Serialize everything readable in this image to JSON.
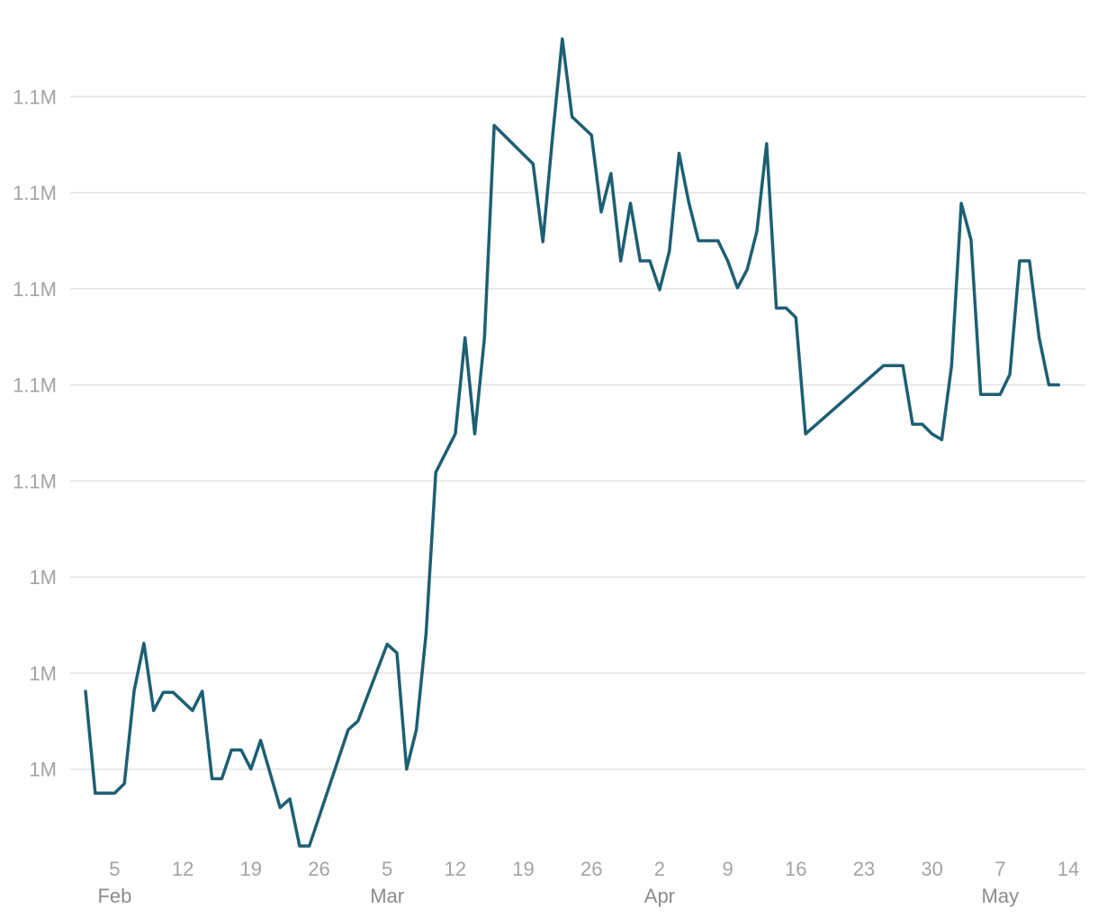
{
  "chart_data": {
    "type": "line",
    "title": "",
    "xlabel": "",
    "ylabel": "",
    "x_range": [
      "2018-02-02",
      "2018-05-14"
    ],
    "ylim": [
      1046000,
      1132000
    ],
    "y_ticks": [
      {
        "value": 1054000,
        "label": "1M"
      },
      {
        "value": 1064000,
        "label": "1M"
      },
      {
        "value": 1074000,
        "label": "1M"
      },
      {
        "value": 1084000,
        "label": "1.1M"
      },
      {
        "value": 1094000,
        "label": "1.1M"
      },
      {
        "value": 1104000,
        "label": "1.1M"
      },
      {
        "value": 1114000,
        "label": "1.1M"
      },
      {
        "value": 1124000,
        "label": "1.1M"
      }
    ],
    "x_ticks": [
      {
        "date": "2018-02-05",
        "day": "5",
        "month": "Feb"
      },
      {
        "date": "2018-02-12",
        "day": "12",
        "month": ""
      },
      {
        "date": "2018-02-19",
        "day": "19",
        "month": ""
      },
      {
        "date": "2018-02-26",
        "day": "26",
        "month": ""
      },
      {
        "date": "2018-03-05",
        "day": "5",
        "month": "Mar"
      },
      {
        "date": "2018-03-12",
        "day": "12",
        "month": ""
      },
      {
        "date": "2018-03-19",
        "day": "19",
        "month": ""
      },
      {
        "date": "2018-03-26",
        "day": "26",
        "month": ""
      },
      {
        "date": "2018-04-02",
        "day": "2",
        "month": "Apr"
      },
      {
        "date": "2018-04-09",
        "day": "9",
        "month": ""
      },
      {
        "date": "2018-04-16",
        "day": "16",
        "month": ""
      },
      {
        "date": "2018-04-23",
        "day": "23",
        "month": ""
      },
      {
        "date": "2018-04-30",
        "day": "30",
        "month": ""
      },
      {
        "date": "2018-05-07",
        "day": "7",
        "month": "May"
      },
      {
        "date": "2018-05-14",
        "day": "14",
        "month": ""
      }
    ],
    "grid": true,
    "legend": "none",
    "colors": {
      "line": "#1d5f73",
      "grid": "#e3e3e3",
      "tick_text": "#a3a3a3",
      "month_text": "#8c8c8c"
    },
    "series": [
      {
        "name": "",
        "points": [
          [
            "2018-02-02",
            1062100
          ],
          [
            "2018-02-03",
            1051500
          ],
          [
            "2018-02-04",
            1051500
          ],
          [
            "2018-02-05",
            1051500
          ],
          [
            "2018-02-06",
            1052500
          ],
          [
            "2018-02-07",
            1062200
          ],
          [
            "2018-02-08",
            1067100
          ],
          [
            "2018-02-09",
            1060100
          ],
          [
            "2018-02-10",
            1062000
          ],
          [
            "2018-02-11",
            1062000
          ],
          [
            "2018-02-13",
            1060100
          ],
          [
            "2018-02-14",
            1062100
          ],
          [
            "2018-02-15",
            1053000
          ],
          [
            "2018-02-16",
            1053000
          ],
          [
            "2018-02-17",
            1056000
          ],
          [
            "2018-02-18",
            1056000
          ],
          [
            "2018-02-19",
            1054000
          ],
          [
            "2018-02-20",
            1057000
          ],
          [
            "2018-02-22",
            1050000
          ],
          [
            "2018-02-23",
            1050900
          ],
          [
            "2018-02-24",
            1046000
          ],
          [
            "2018-02-25",
            1046000
          ],
          [
            "2018-03-01",
            1058100
          ],
          [
            "2018-03-02",
            1059000
          ],
          [
            "2018-03-05",
            1067000
          ],
          [
            "2018-03-06",
            1066100
          ],
          [
            "2018-03-07",
            1054000
          ],
          [
            "2018-03-08",
            1058100
          ],
          [
            "2018-03-09",
            1068100
          ],
          [
            "2018-03-10",
            1084900
          ],
          [
            "2018-03-12",
            1088900
          ],
          [
            "2018-03-13",
            1098900
          ],
          [
            "2018-03-14",
            1088900
          ],
          [
            "2018-03-15",
            1098900
          ],
          [
            "2018-03-16",
            1121000
          ],
          [
            "2018-03-20",
            1117000
          ],
          [
            "2018-03-21",
            1108900
          ],
          [
            "2018-03-22",
            1119900
          ],
          [
            "2018-03-23",
            1130000
          ],
          [
            "2018-03-24",
            1121900
          ],
          [
            "2018-03-26",
            1120000
          ],
          [
            "2018-03-27",
            1112000
          ],
          [
            "2018-03-28",
            1116000
          ],
          [
            "2018-03-29",
            1106900
          ],
          [
            "2018-03-30",
            1112900
          ],
          [
            "2018-03-31",
            1106900
          ],
          [
            "2018-04-01",
            1106900
          ],
          [
            "2018-04-02",
            1103900
          ],
          [
            "2018-04-03",
            1107900
          ],
          [
            "2018-04-04",
            1118100
          ],
          [
            "2018-04-05",
            1113000
          ],
          [
            "2018-04-06",
            1109000
          ],
          [
            "2018-04-08",
            1109000
          ],
          [
            "2018-04-09",
            1106900
          ],
          [
            "2018-04-10",
            1104100
          ],
          [
            "2018-04-11",
            1106000
          ],
          [
            "2018-04-12",
            1110000
          ],
          [
            "2018-04-13",
            1119100
          ],
          [
            "2018-04-14",
            1102000
          ],
          [
            "2018-04-15",
            1102000
          ],
          [
            "2018-04-16",
            1101000
          ],
          [
            "2018-04-17",
            1088900
          ],
          [
            "2018-04-25",
            1096000
          ],
          [
            "2018-04-27",
            1096000
          ],
          [
            "2018-04-28",
            1089900
          ],
          [
            "2018-04-29",
            1089900
          ],
          [
            "2018-04-30",
            1088900
          ],
          [
            "2018-05-01",
            1088300
          ],
          [
            "2018-05-02",
            1096000
          ],
          [
            "2018-05-03",
            1112900
          ],
          [
            "2018-05-04",
            1109100
          ],
          [
            "2018-05-05",
            1093000
          ],
          [
            "2018-05-07",
            1093000
          ],
          [
            "2018-05-08",
            1095100
          ],
          [
            "2018-05-09",
            1106900
          ],
          [
            "2018-05-10",
            1106900
          ],
          [
            "2018-05-11",
            1098900
          ],
          [
            "2018-05-12",
            1094000
          ],
          [
            "2018-05-13",
            1094000
          ]
        ]
      }
    ]
  }
}
